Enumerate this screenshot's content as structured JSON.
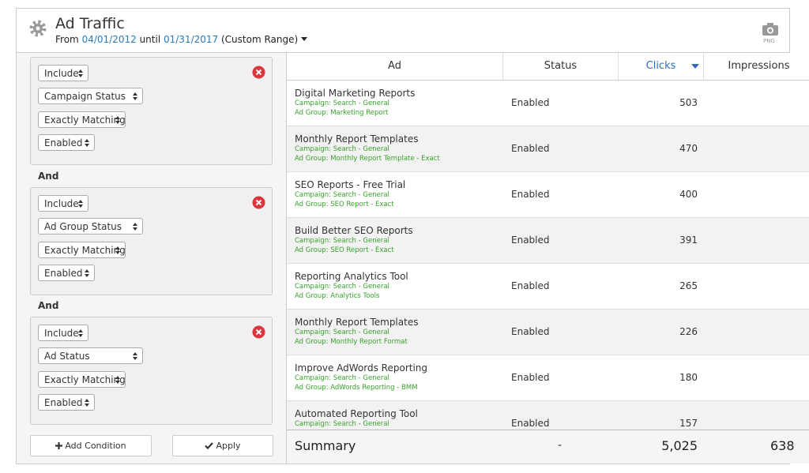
{
  "header": {
    "title": "Ad Traffic",
    "from_label": "From",
    "start_date": "04/01/2012",
    "until_label": "until",
    "end_date": "01/31/2017",
    "range_label": "(Custom Range)",
    "export_label": "PNG"
  },
  "filters": {
    "groups": [
      {
        "mode": "Include",
        "field": "Campaign Status",
        "operator": "Exactly Matching",
        "value": "Enabled"
      },
      {
        "mode": "Include",
        "field": "Ad Group Status",
        "operator": "Exactly Matching",
        "value": "Enabled"
      },
      {
        "mode": "Include",
        "field": "Ad Status",
        "operator": "Exactly Matching",
        "value": "Enabled"
      }
    ],
    "connectors": [
      "And",
      "And"
    ],
    "add_button": "Add Condition",
    "apply_button": "Apply"
  },
  "table": {
    "columns": [
      "Ad",
      "Status",
      "Clicks",
      "Impressions"
    ],
    "rows": [
      {
        "ad": "Digital Marketing Reports",
        "campaign": "Campaign: Search - General",
        "ad_group": "Ad Group: Marketing Report",
        "status": "Enabled",
        "clicks": 503
      },
      {
        "ad": "Monthly Report Templates",
        "campaign": "Campaign: Search - General",
        "ad_group": "Ad Group: Monthly Report Template - Exact",
        "status": "Enabled",
        "clicks": 470
      },
      {
        "ad": "SEO Reports - Free Trial",
        "campaign": "Campaign: Search - General",
        "ad_group": "Ad Group: SEO Report - Exact",
        "status": "Enabled",
        "clicks": 400
      },
      {
        "ad": "Build Better SEO Reports",
        "campaign": "Campaign: Search - General",
        "ad_group": "Ad Group: SEO Report - Exact",
        "status": "Enabled",
        "clicks": 391
      },
      {
        "ad": "Reporting Analytics Tool",
        "campaign": "Campaign: Search - General",
        "ad_group": "Ad Group: Analytics Tools",
        "status": "Enabled",
        "clicks": 265
      },
      {
        "ad": "Monthly Report Templates",
        "campaign": "Campaign: Search - General",
        "ad_group": "Ad Group: Monthly Report Format",
        "status": "Enabled",
        "clicks": 226
      },
      {
        "ad": "Improve AdWords Reporting",
        "campaign": "Campaign: Search - General",
        "ad_group": "Ad Group: AdWords Reporting - BMM",
        "status": "Enabled",
        "clicks": 180
      },
      {
        "ad": "Automated Reporting Tool",
        "campaign": "Campaign: Search - General",
        "status": "Enabled",
        "clicks": 157
      }
    ],
    "summary": {
      "label": "Summary",
      "status": "-",
      "clicks": "5,025",
      "impressions": "638"
    }
  }
}
